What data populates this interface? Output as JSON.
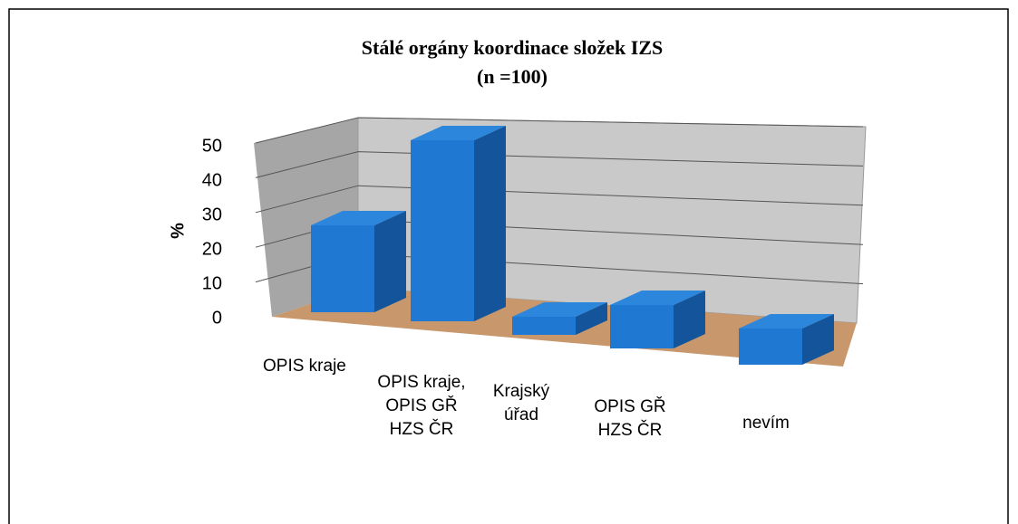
{
  "chart_data": {
    "type": "bar3d",
    "title": "Stálé orgány koordinace složek IZS",
    "subtitle": "(n =100)",
    "y_label": "%",
    "categories": [
      "OPIS kraje",
      "OPIS kraje, OPIS GŘ HZS ČR",
      "Krajský úřad",
      "OPIS GŘ HZS ČR",
      "nevím"
    ],
    "values": [
      24,
      50,
      5,
      12,
      10
    ],
    "color": "#1f78d1",
    "ylim": [
      0,
      50
    ],
    "yticks": [
      0,
      10,
      20,
      30,
      40,
      50
    ],
    "grid": true
  }
}
